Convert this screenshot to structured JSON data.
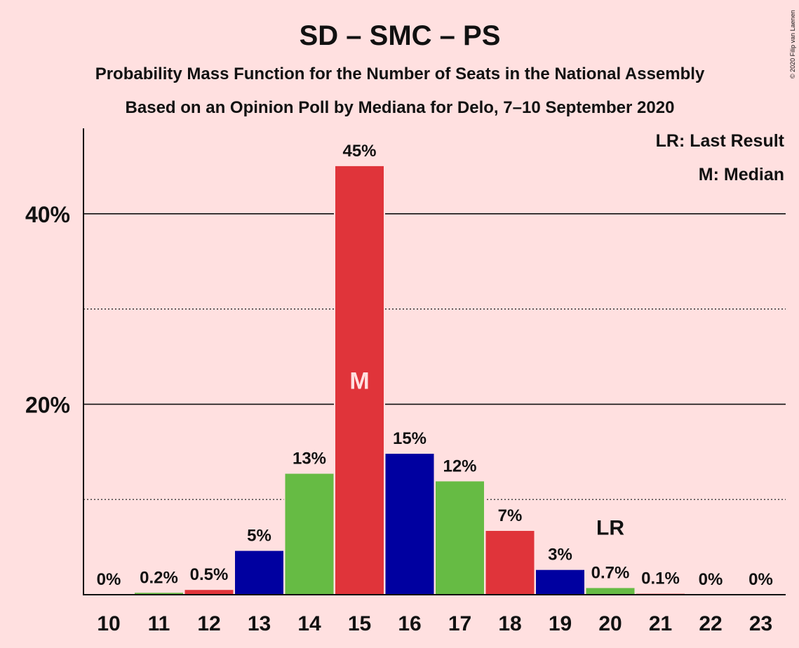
{
  "title": "SD – SMC – PS",
  "subtitle1": "Probability Mass Function for the Number of Seats in the National Assembly",
  "subtitle2": "Based on an Opinion Poll by Mediana for Delo, 7–10 September 2020",
  "legend": {
    "last_result": "LR: Last Result",
    "median": "M: Median"
  },
  "copyright": "© 2020 Filip van Laenen",
  "colors": {
    "background": "#FFE0E0",
    "red": "#E0343A",
    "blue": "#0000A0",
    "green": "#66BB44"
  },
  "chart_data": {
    "type": "bar",
    "categories": [
      "10",
      "11",
      "12",
      "13",
      "14",
      "15",
      "16",
      "17",
      "18",
      "19",
      "20",
      "21",
      "22",
      "23"
    ],
    "values": [
      0,
      0.2,
      0.5,
      4.6,
      12.7,
      45,
      14.8,
      11.9,
      6.7,
      2.6,
      0.7,
      0.1,
      0,
      0
    ],
    "labels": [
      "0%",
      "0.2%",
      "0.5%",
      "5%",
      "13%",
      "45%",
      "15%",
      "12%",
      "7%",
      "3%",
      "0.7%",
      "0.1%",
      "0%",
      "0%"
    ],
    "bar_colors": [
      "red",
      "green",
      "red",
      "blue",
      "green",
      "red",
      "blue",
      "green",
      "red",
      "blue",
      "green",
      "red",
      "blue",
      "green"
    ],
    "y_ticks": [
      {
        "value": 20,
        "label": "20%"
      },
      {
        "value": 40,
        "label": "40%"
      }
    ],
    "minor_gridlines": [
      10,
      30
    ],
    "ylim": [
      0,
      49
    ],
    "median_index": 5,
    "median_marker": "M",
    "last_result_index": 10,
    "last_result_marker": "LR",
    "legend_position": "top-right"
  }
}
